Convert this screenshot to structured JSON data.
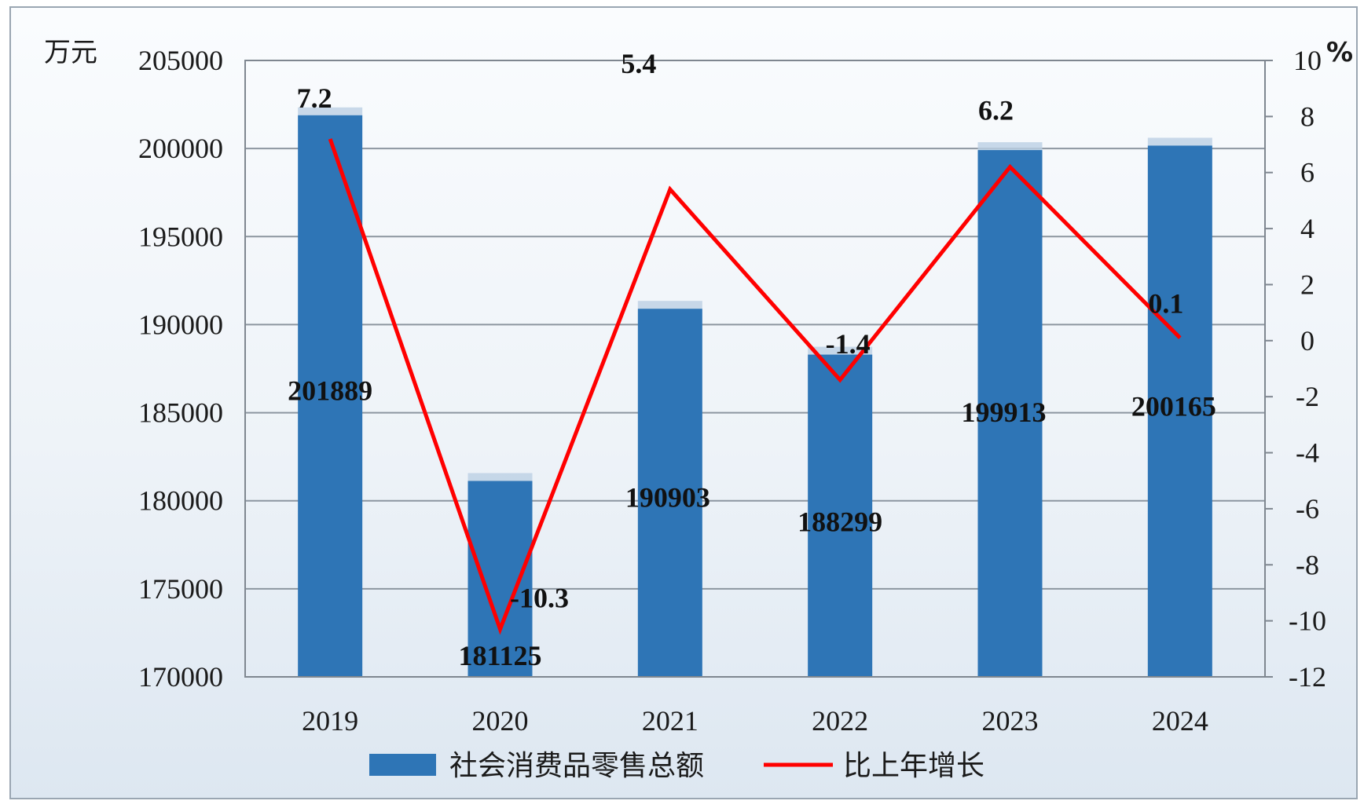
{
  "chart_data": {
    "type": "bar",
    "categories": [
      "2019",
      "2020",
      "2021",
      "2022",
      "2023",
      "2024"
    ],
    "series": [
      {
        "name": "社会消费品零售总额",
        "type": "bar",
        "axis": "left",
        "color": "#2e75b6",
        "values": [
          201889,
          181125,
          190903,
          188299,
          199913,
          200165
        ]
      },
      {
        "name": "比上年增长",
        "type": "line",
        "axis": "right",
        "color": "#ff0000",
        "values": [
          7.2,
          -10.3,
          5.4,
          -1.4,
          6.2,
          0.1
        ]
      }
    ],
    "y_left": {
      "unit": "万元",
      "ylim": [
        170000,
        205000
      ],
      "ticks": [
        "170000",
        "175000",
        "180000",
        "185000",
        "190000",
        "195000",
        "200000",
        "205000"
      ]
    },
    "y_right": {
      "unit": "%",
      "ylim": [
        -12,
        10
      ],
      "ticks": [
        "-12",
        "-10",
        "-8",
        "-6",
        "-4",
        "-2",
        "0",
        "2",
        "4",
        "6",
        "8",
        "10"
      ]
    },
    "bar_labels": [
      "201889",
      "181125",
      "190903",
      "188299",
      "199913",
      "200165"
    ],
    "line_labels": [
      "7.2",
      "-10.3",
      "5.4",
      "-1.4",
      "6.2",
      "0.1"
    ],
    "grid": true,
    "legend_position": "bottom"
  }
}
